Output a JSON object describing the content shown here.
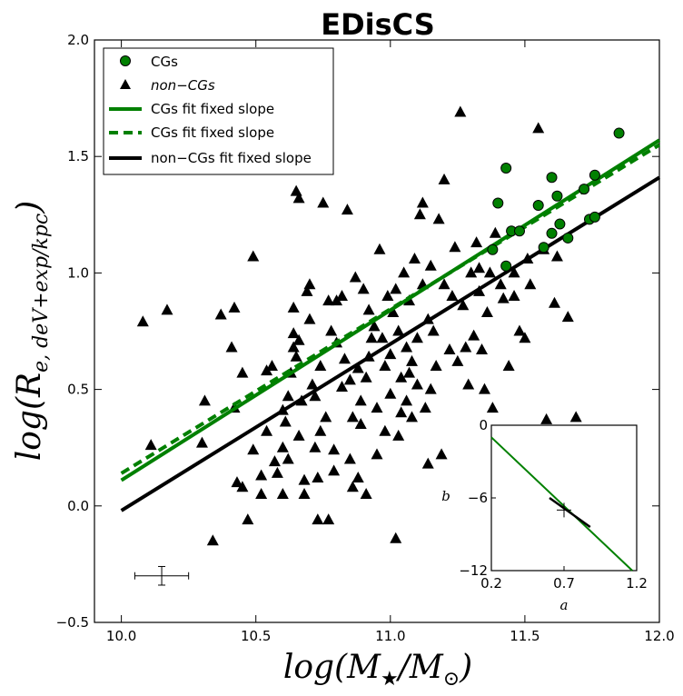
{
  "chart_data": {
    "type": "scatter",
    "title": "EDisCS",
    "xlabel": "log(M★/M☉)",
    "ylabel": "log(R e, deV+exp/kpc)",
    "xlim": [
      9.9,
      12.0
    ],
    "ylim": [
      -0.5,
      2.0
    ],
    "xticks": [
      "10.0",
      "10.5",
      "11.0",
      "11.5",
      "12.0"
    ],
    "yticks": [
      "−0.5",
      "0.0",
      "0.5",
      "1.0",
      "1.5",
      "2.0"
    ],
    "legend_position": "top-left",
    "legend": [
      {
        "label": "CGs",
        "marker": "circle"
      },
      {
        "label": "non−CGs",
        "marker": "triangle"
      },
      {
        "label": "CGs fit fixed slope",
        "style": "solid"
      },
      {
        "label": "CGs fit fixed slope",
        "style": "dashed"
      },
      {
        "label": "non−CGs fit fixed slope",
        "style": "solid-black"
      }
    ],
    "colors": {
      "cgs": "#008000",
      "noncgs": "#000000"
    },
    "fits": [
      {
        "name": "CGs fit fixed slope",
        "style": "solid",
        "color": "#008000",
        "x": [
          10.0,
          12.0
        ],
        "y": [
          0.11,
          1.57
        ]
      },
      {
        "name": "CGs fit fixed slope",
        "style": "dashed",
        "color": "#008000",
        "x": [
          10.0,
          12.0
        ],
        "y": [
          0.14,
          1.55
        ]
      },
      {
        "name": "non−CGs fit fixed slope",
        "style": "solid",
        "color": "#000000",
        "x": [
          10.0,
          12.0
        ],
        "y": [
          -0.02,
          1.41
        ]
      }
    ],
    "error_bar": {
      "x": 10.15,
      "y": -0.3,
      "xerr": 0.1,
      "yerr": 0.04
    },
    "series": [
      {
        "name": "CGs",
        "marker": "circle",
        "color": "#008000",
        "points": [
          [
            11.85,
            1.6
          ],
          [
            11.43,
            1.45
          ],
          [
            11.6,
            1.41
          ],
          [
            11.76,
            1.42
          ],
          [
            11.62,
            1.33
          ],
          [
            11.72,
            1.36
          ],
          [
            11.4,
            1.3
          ],
          [
            11.55,
            1.29
          ],
          [
            11.74,
            1.23
          ],
          [
            11.76,
            1.24
          ],
          [
            11.63,
            1.21
          ],
          [
            11.45,
            1.18
          ],
          [
            11.6,
            1.17
          ],
          [
            11.66,
            1.15
          ],
          [
            11.48,
            1.18
          ],
          [
            11.57,
            1.11
          ],
          [
            11.38,
            1.1
          ],
          [
            11.43,
            1.03
          ]
        ]
      },
      {
        "name": "non−CGs",
        "marker": "triangle",
        "color": "#000000",
        "points": [
          [
            10.08,
            0.79
          ],
          [
            10.17,
            0.84
          ],
          [
            10.37,
            0.82
          ],
          [
            10.42,
            0.85
          ],
          [
            10.41,
            0.68
          ],
          [
            10.49,
            1.07
          ],
          [
            10.45,
            0.57
          ],
          [
            10.31,
            0.45
          ],
          [
            10.11,
            0.26
          ],
          [
            10.3,
            0.27
          ],
          [
            10.34,
            -0.15
          ],
          [
            10.42,
            0.42
          ],
          [
            10.43,
            0.1
          ],
          [
            10.47,
            -0.06
          ],
          [
            10.45,
            0.08
          ],
          [
            10.49,
            0.24
          ],
          [
            10.52,
            0.13
          ],
          [
            10.54,
            0.32
          ],
          [
            10.54,
            0.58
          ],
          [
            10.57,
            0.19
          ],
          [
            10.58,
            0.14
          ],
          [
            10.6,
            0.05
          ],
          [
            10.6,
            0.25
          ],
          [
            10.62,
            0.2
          ],
          [
            10.62,
            0.47
          ],
          [
            10.63,
            0.57
          ],
          [
            10.64,
            0.85
          ],
          [
            10.65,
            1.35
          ],
          [
            10.66,
            1.32
          ],
          [
            10.64,
            0.68
          ],
          [
            10.64,
            0.74
          ],
          [
            10.65,
            0.64
          ],
          [
            10.66,
            0.71
          ],
          [
            10.67,
            0.45
          ],
          [
            10.68,
            0.11
          ],
          [
            10.68,
            0.05
          ],
          [
            10.7,
            0.8
          ],
          [
            10.7,
            0.95
          ],
          [
            10.71,
            0.52
          ],
          [
            10.72,
            0.47
          ],
          [
            10.72,
            0.25
          ],
          [
            10.73,
            -0.06
          ],
          [
            10.74,
            0.32
          ],
          [
            10.74,
            0.6
          ],
          [
            10.75,
            1.3
          ],
          [
            10.76,
            0.38
          ],
          [
            10.77,
            0.88
          ],
          [
            10.77,
            -0.06
          ],
          [
            10.79,
            0.15
          ],
          [
            10.79,
            0.24
          ],
          [
            10.8,
            0.7
          ],
          [
            10.8,
            0.88
          ],
          [
            10.82,
            0.51
          ],
          [
            10.82,
            0.9
          ],
          [
            10.83,
            0.63
          ],
          [
            10.84,
            1.27
          ],
          [
            10.85,
            0.2
          ],
          [
            10.86,
            0.08
          ],
          [
            10.86,
            0.38
          ],
          [
            10.87,
            0.98
          ],
          [
            10.88,
            0.59
          ],
          [
            10.88,
            0.12
          ],
          [
            10.89,
            0.45
          ],
          [
            10.89,
            0.35
          ],
          [
            10.9,
            0.93
          ],
          [
            10.91,
            0.55
          ],
          [
            10.91,
            0.05
          ],
          [
            10.92,
            0.64
          ],
          [
            10.92,
            0.84
          ],
          [
            10.94,
            0.77
          ],
          [
            10.95,
            0.42
          ],
          [
            10.95,
            0.22
          ],
          [
            10.96,
            1.1
          ],
          [
            10.97,
            0.72
          ],
          [
            10.98,
            0.6
          ],
          [
            10.98,
            0.32
          ],
          [
            10.99,
            0.9
          ],
          [
            11.0,
            0.48
          ],
          [
            11.0,
            0.65
          ],
          [
            11.01,
            0.83
          ],
          [
            11.02,
            0.93
          ],
          [
            11.02,
            -0.14
          ],
          [
            11.03,
            0.3
          ],
          [
            11.03,
            0.75
          ],
          [
            11.04,
            0.55
          ],
          [
            11.04,
            0.4
          ],
          [
            11.05,
            1.0
          ],
          [
            11.06,
            0.45
          ],
          [
            11.06,
            0.68
          ],
          [
            11.07,
            0.88
          ],
          [
            11.08,
            0.62
          ],
          [
            11.08,
            0.38
          ],
          [
            11.09,
            1.06
          ],
          [
            11.1,
            0.72
          ],
          [
            11.1,
            0.52
          ],
          [
            11.11,
            1.25
          ],
          [
            11.12,
            0.95
          ],
          [
            11.12,
            1.3
          ],
          [
            11.13,
            0.42
          ],
          [
            11.14,
            0.8
          ],
          [
            11.14,
            0.18
          ],
          [
            11.15,
            1.03
          ],
          [
            11.16,
            0.75
          ],
          [
            11.17,
            0.6
          ],
          [
            11.18,
            1.23
          ],
          [
            11.19,
            0.22
          ],
          [
            11.2,
            1.4
          ],
          [
            11.2,
            0.95
          ],
          [
            11.22,
            0.67
          ],
          [
            11.23,
            0.9
          ],
          [
            11.24,
            1.11
          ],
          [
            11.25,
            0.62
          ],
          [
            11.26,
            1.69
          ],
          [
            11.27,
            0.86
          ],
          [
            11.28,
            0.68
          ],
          [
            11.29,
            0.52
          ],
          [
            11.3,
            1.0
          ],
          [
            11.31,
            0.73
          ],
          [
            11.32,
            1.13
          ],
          [
            11.33,
            0.92
          ],
          [
            11.34,
            0.67
          ],
          [
            11.35,
            0.5
          ],
          [
            11.36,
            0.83
          ],
          [
            11.37,
            1.0
          ],
          [
            11.38,
            0.42
          ],
          [
            11.39,
            1.17
          ],
          [
            11.41,
            0.95
          ],
          [
            11.44,
            0.6
          ],
          [
            11.46,
            0.9
          ],
          [
            11.48,
            0.75
          ],
          [
            11.5,
            0.72
          ],
          [
            11.52,
            0.95
          ],
          [
            11.55,
            1.62
          ],
          [
            11.57,
            1.1
          ],
          [
            11.58,
            0.37
          ],
          [
            11.61,
            0.87
          ],
          [
            11.62,
            1.07
          ],
          [
            11.66,
            0.81
          ],
          [
            11.69,
            0.38
          ],
          [
            11.51,
            1.06
          ],
          [
            11.46,
            1.0
          ],
          [
            11.42,
            0.89
          ],
          [
            11.33,
            1.02
          ],
          [
            11.15,
            0.5
          ],
          [
            11.07,
            0.57
          ],
          [
            10.93,
            0.72
          ],
          [
            10.85,
            0.54
          ],
          [
            10.78,
            0.75
          ],
          [
            10.73,
            0.12
          ],
          [
            10.69,
            0.92
          ],
          [
            10.61,
            0.36
          ],
          [
            10.56,
            0.6
          ],
          [
            10.52,
            0.05
          ],
          [
            10.6,
            0.41
          ],
          [
            10.66,
            0.3
          ]
        ]
      }
    ],
    "inset": {
      "xlim": [
        0.2,
        1.2
      ],
      "ylim": [
        -12,
        0
      ],
      "xticks": [
        "0.2",
        "0.7",
        "1.2"
      ],
      "yticks": [
        "0",
        "−6",
        "−12"
      ],
      "xlabel": "a",
      "ylabel": "b",
      "green_line": {
        "x": [
          0.2,
          1.17
        ],
        "y": [
          -1.0,
          -12.0
        ]
      },
      "black_line": {
        "x": [
          0.6,
          0.88
        ],
        "y": [
          -6.0,
          -8.4
        ]
      },
      "cross": {
        "x": 0.7,
        "y": -7.0
      }
    }
  }
}
